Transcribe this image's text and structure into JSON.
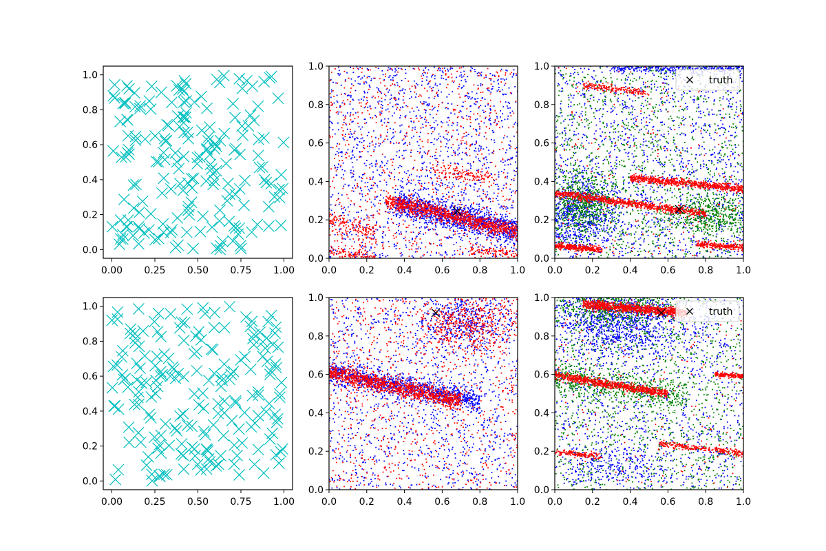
{
  "chart_data": [
    {
      "panel": "row1-col1",
      "type": "scatter",
      "title": "",
      "xlabel": "",
      "ylabel": "",
      "xlim": [
        -0.05,
        1.05
      ],
      "ylim": [
        -0.05,
        1.05
      ],
      "xticks": [
        "0.00",
        "0.25",
        "0.50",
        "0.75",
        "1.00"
      ],
      "yticks": [
        "0.0",
        "0.2",
        "0.4",
        "0.6",
        "0.8",
        "1.0"
      ],
      "grid": false,
      "legend": null,
      "series": [
        {
          "marker": "x",
          "color": "#00bfbf",
          "marker_size": "large",
          "count_shown": 200,
          "distribution": "uniform over [0,1]x[0,1]",
          "seed": 11
        }
      ]
    },
    {
      "panel": "row1-col2",
      "type": "scatter",
      "title": "",
      "xlabel": "",
      "ylabel": "",
      "xlim": [
        0,
        1
      ],
      "ylim": [
        0,
        1
      ],
      "xticks": [
        "0.0",
        "0.2",
        "0.4",
        "0.6",
        "0.8",
        "1.0"
      ],
      "yticks": [
        "0.0",
        "0.2",
        "0.4",
        "0.6",
        "0.8",
        "1.0"
      ],
      "grid": false,
      "legend": null,
      "series": [
        {
          "color": "#0000ff",
          "marker": "dot",
          "count_shown": 2600,
          "seed": 21,
          "clusters": [
            {
              "weight": 0.45,
              "band": true,
              "x0": 0.35,
              "x1": 1.0,
              "y_at_x0": 0.29,
              "y_at_x1": 0.14,
              "spread": 0.035
            },
            {
              "weight": 0.55,
              "uniform": true
            }
          ]
        },
        {
          "color": "#ff0000",
          "marker": "dot",
          "count_shown": 2200,
          "seed": 22,
          "clusters": [
            {
              "weight": 0.42,
              "band": true,
              "x0": 0.3,
              "x1": 1.0,
              "y_at_x0": 0.3,
              "y_at_x1": 0.14,
              "spread": 0.02
            },
            {
              "weight": 0.06,
              "band": true,
              "x0": 0.0,
              "x1": 0.25,
              "y_at_x0": 0.2,
              "y_at_x1": 0.12,
              "spread": 0.03
            },
            {
              "weight": 0.05,
              "band": true,
              "x0": 0.0,
              "x1": 0.25,
              "y_at_x0": 0.04,
              "y_at_x1": 0.0,
              "spread": 0.015
            },
            {
              "weight": 0.05,
              "band": true,
              "x0": 0.55,
              "x1": 0.85,
              "y_at_x0": 0.46,
              "y_at_x1": 0.42,
              "spread": 0.02
            },
            {
              "weight": 0.04,
              "band": true,
              "x0": 0.75,
              "x1": 1.0,
              "y_at_x0": 0.04,
              "y_at_x1": 0.02,
              "spread": 0.015
            },
            {
              "weight": 0.38,
              "uniform": true
            }
          ]
        }
      ],
      "truth_point": {
        "x": 0.68,
        "y": 0.245,
        "marker": "x",
        "color": "#000000"
      }
    },
    {
      "panel": "row1-col3",
      "type": "scatter",
      "title": "",
      "xlabel": "",
      "ylabel": "",
      "xlim": [
        0,
        1
      ],
      "ylim": [
        0,
        1
      ],
      "xticks": [
        "0.0",
        "0.2",
        "0.4",
        "0.6",
        "0.8",
        "1.0"
      ],
      "yticks": [
        "0.0",
        "0.2",
        "0.4",
        "0.6",
        "0.8",
        "1.0"
      ],
      "grid": false,
      "legend": {
        "position": "top-right",
        "entries": [
          {
            "label": "truth",
            "marker": "x",
            "color": "#000000"
          }
        ]
      },
      "series": [
        {
          "color": "#0000ff",
          "marker": "dot",
          "count_shown": 2400,
          "seed": 31,
          "clusters": [
            {
              "weight": 0.3,
              "blob": true,
              "cx": 0.12,
              "cy": 0.24,
              "sx": 0.1,
              "sy": 0.1
            },
            {
              "weight": 0.12,
              "band": true,
              "x0": 0.3,
              "x1": 1.0,
              "y_at_x0": 0.99,
              "y_at_x1": 0.99,
              "spread": 0.012
            },
            {
              "weight": 0.58,
              "uniform": true
            }
          ]
        },
        {
          "color": "#008000",
          "marker": "dot",
          "count_shown": 2200,
          "seed": 32,
          "clusters": [
            {
              "weight": 0.25,
              "blob": true,
              "cx": 0.15,
              "cy": 0.28,
              "sx": 0.1,
              "sy": 0.08
            },
            {
              "weight": 0.2,
              "blob": true,
              "cx": 0.82,
              "cy": 0.22,
              "sx": 0.12,
              "sy": 0.05
            },
            {
              "weight": 0.55,
              "uniform": true
            }
          ]
        },
        {
          "color": "#ff0000",
          "marker": "dot",
          "count_shown": 2400,
          "seed": 33,
          "clusters": [
            {
              "weight": 0.34,
              "band": true,
              "x0": 0.0,
              "x1": 0.8,
              "y_at_x0": 0.34,
              "y_at_x1": 0.23,
              "spread": 0.01
            },
            {
              "weight": 0.3,
              "band": true,
              "x0": 0.4,
              "x1": 1.0,
              "y_at_x0": 0.42,
              "y_at_x1": 0.36,
              "spread": 0.01
            },
            {
              "weight": 0.12,
              "band": true,
              "x0": 0.0,
              "x1": 0.25,
              "y_at_x0": 0.065,
              "y_at_x1": 0.045,
              "spread": 0.008
            },
            {
              "weight": 0.1,
              "band": true,
              "x0": 0.75,
              "x1": 1.0,
              "y_at_x0": 0.075,
              "y_at_x1": 0.055,
              "spread": 0.008
            },
            {
              "weight": 0.07,
              "band": true,
              "x0": 0.15,
              "x1": 0.5,
              "y_at_x0": 0.9,
              "y_at_x1": 0.86,
              "spread": 0.01
            },
            {
              "weight": 0.07,
              "uniform": true
            }
          ]
        }
      ],
      "truth_point": {
        "x": 0.66,
        "y": 0.255,
        "marker": "x",
        "color": "#000000"
      }
    },
    {
      "panel": "row2-col1",
      "type": "scatter",
      "title": "",
      "xlabel": "",
      "ylabel": "",
      "xlim": [
        -0.05,
        1.05
      ],
      "ylim": [
        -0.05,
        1.05
      ],
      "xticks": [
        "0.00",
        "0.25",
        "0.50",
        "0.75",
        "1.00"
      ],
      "yticks": [
        "0.0",
        "0.2",
        "0.4",
        "0.6",
        "0.8",
        "1.0"
      ],
      "grid": false,
      "legend": null,
      "series": [
        {
          "marker": "x",
          "color": "#00bfbf",
          "marker_size": "large",
          "count_shown": 200,
          "distribution": "uniform over [0,1]x[0,1]",
          "seed": 41
        }
      ]
    },
    {
      "panel": "row2-col2",
      "type": "scatter",
      "title": "",
      "xlabel": "",
      "ylabel": "",
      "xlim": [
        0,
        1
      ],
      "ylim": [
        0,
        1
      ],
      "xticks": [
        "0.0",
        "0.2",
        "0.4",
        "0.6",
        "0.8",
        "1.0"
      ],
      "yticks": [
        "0.0",
        "0.2",
        "0.4",
        "0.6",
        "0.8",
        "1.0"
      ],
      "grid": false,
      "legend": null,
      "series": [
        {
          "color": "#0000ff",
          "marker": "dot",
          "count_shown": 2600,
          "seed": 51,
          "clusters": [
            {
              "weight": 0.42,
              "band": true,
              "x0": 0.0,
              "x1": 0.8,
              "y_at_x0": 0.61,
              "y_at_x1": 0.46,
              "spread": 0.03
            },
            {
              "weight": 0.15,
              "blob": true,
              "cx": 0.72,
              "cy": 0.88,
              "sx": 0.12,
              "sy": 0.08
            },
            {
              "weight": 0.43,
              "uniform": true
            }
          ]
        },
        {
          "color": "#ff0000",
          "marker": "dot",
          "count_shown": 2400,
          "seed": 52,
          "clusters": [
            {
              "weight": 0.45,
              "band": true,
              "x0": 0.0,
              "x1": 0.7,
              "y_at_x0": 0.61,
              "y_at_x1": 0.46,
              "spread": 0.022
            },
            {
              "weight": 0.2,
              "blob": true,
              "cx": 0.74,
              "cy": 0.86,
              "sx": 0.13,
              "sy": 0.08
            },
            {
              "weight": 0.35,
              "uniform": true
            }
          ]
        }
      ],
      "truth_point": {
        "x": 0.565,
        "y": 0.92,
        "marker": "x",
        "color": "#000000"
      }
    },
    {
      "panel": "row2-col3",
      "type": "scatter",
      "title": "",
      "xlabel": "",
      "ylabel": "",
      "xlim": [
        0,
        1
      ],
      "ylim": [
        0,
        1
      ],
      "xticks": [
        "0.0",
        "0.2",
        "0.4",
        "0.6",
        "0.8",
        "1.0"
      ],
      "yticks": [
        "0.0",
        "0.2",
        "0.4",
        "0.6",
        "0.8",
        "1.0"
      ],
      "grid": false,
      "legend": {
        "position": "top-right",
        "entries": [
          {
            "label": "truth",
            "marker": "x",
            "color": "#000000"
          }
        ]
      },
      "series": [
        {
          "color": "#0000ff",
          "marker": "dot",
          "count_shown": 2400,
          "seed": 61,
          "clusters": [
            {
              "weight": 0.45,
              "blob": true,
              "cx": 0.35,
              "cy": 0.88,
              "sx": 0.18,
              "sy": 0.09
            },
            {
              "weight": 0.1,
              "blob": true,
              "cx": 0.35,
              "cy": 0.12,
              "sx": 0.15,
              "sy": 0.05
            },
            {
              "weight": 0.45,
              "uniform": true
            }
          ]
        },
        {
          "color": "#008000",
          "marker": "dot",
          "count_shown": 2200,
          "seed": 62,
          "clusters": [
            {
              "weight": 0.22,
              "blob": true,
              "cx": 0.3,
              "cy": 0.95,
              "sx": 0.15,
              "sy": 0.05
            },
            {
              "weight": 0.25,
              "band": true,
              "x0": 0.0,
              "x1": 0.7,
              "y_at_x0": 0.58,
              "y_at_x1": 0.48,
              "spread": 0.04
            },
            {
              "weight": 0.53,
              "uniform": true
            }
          ]
        },
        {
          "color": "#ff0000",
          "marker": "dot",
          "count_shown": 2400,
          "seed": 63,
          "clusters": [
            {
              "weight": 0.38,
              "band": true,
              "x0": 0.15,
              "x1": 0.7,
              "y_at_x0": 0.965,
              "y_at_x1": 0.92,
              "spread": 0.012
            },
            {
              "weight": 0.3,
              "band": true,
              "x0": 0.0,
              "x1": 0.6,
              "y_at_x0": 0.595,
              "y_at_x1": 0.5,
              "spread": 0.01
            },
            {
              "weight": 0.08,
              "band": true,
              "x0": 0.85,
              "x1": 1.0,
              "y_at_x0": 0.6,
              "y_at_x1": 0.59,
              "spread": 0.006
            },
            {
              "weight": 0.1,
              "band": true,
              "x0": 0.55,
              "x1": 1.0,
              "y_at_x0": 0.24,
              "y_at_x1": 0.19,
              "spread": 0.008
            },
            {
              "weight": 0.06,
              "band": true,
              "x0": 0.0,
              "x1": 0.25,
              "y_at_x0": 0.2,
              "y_at_x1": 0.17,
              "spread": 0.008
            },
            {
              "weight": 0.08,
              "uniform": true
            }
          ]
        }
      ],
      "truth_point": {
        "x": 0.565,
        "y": 0.92,
        "marker": "x",
        "color": "#000000"
      }
    }
  ]
}
